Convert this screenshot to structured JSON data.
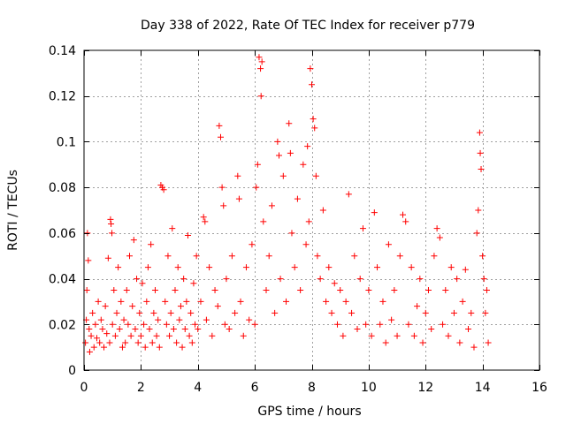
{
  "chart_data": {
    "type": "scatter",
    "title": "Day 338 of 2022, Rate Of TEC Index for receiver p779",
    "xlabel": "GPS time / hours",
    "ylabel": "ROTI / TECUs",
    "xlim": [
      0,
      16
    ],
    "ylim": [
      0,
      0.14
    ],
    "xticks": [
      0,
      2,
      4,
      6,
      8,
      10,
      12,
      14,
      16
    ],
    "yticks": [
      0,
      0.02,
      0.04,
      0.06,
      0.08,
      0.1,
      0.12,
      0.14
    ],
    "xtick_labels": [
      "0",
      "2",
      "4",
      "6",
      "8",
      "10",
      "12",
      "14",
      "16"
    ],
    "ytick_labels": [
      "0",
      "0.02",
      "0.04",
      "0.06",
      "0.08",
      "0.1",
      "0.12",
      "0.14"
    ],
    "grid": true,
    "marker": "plus",
    "color": "#ff0000",
    "series": [
      {
        "name": "ROTI",
        "points": [
          [
            0.05,
            0.012
          ],
          [
            0.08,
            0.022
          ],
          [
            0.1,
            0.035
          ],
          [
            0.12,
            0.06
          ],
          [
            0.15,
            0.048
          ],
          [
            0.18,
            0.018
          ],
          [
            0.2,
            0.008
          ],
          [
            0.25,
            0.015
          ],
          [
            0.3,
            0.025
          ],
          [
            0.35,
            0.01
          ],
          [
            0.4,
            0.02
          ],
          [
            0.45,
            0.014
          ],
          [
            0.5,
            0.03
          ],
          [
            0.55,
            0.012
          ],
          [
            0.6,
            0.022
          ],
          [
            0.65,
            0.018
          ],
          [
            0.7,
            0.01
          ],
          [
            0.75,
            0.028
          ],
          [
            0.8,
            0.016
          ],
          [
            0.85,
            0.049
          ],
          [
            0.9,
            0.012
          ],
          [
            0.93,
            0.066
          ],
          [
            0.95,
            0.064
          ],
          [
            0.98,
            0.06
          ],
          [
            1.0,
            0.02
          ],
          [
            1.05,
            0.035
          ],
          [
            1.1,
            0.015
          ],
          [
            1.15,
            0.025
          ],
          [
            1.2,
            0.045
          ],
          [
            1.25,
            0.018
          ],
          [
            1.3,
            0.03
          ],
          [
            1.35,
            0.01
          ],
          [
            1.4,
            0.022
          ],
          [
            1.45,
            0.012
          ],
          [
            1.5,
            0.035
          ],
          [
            1.55,
            0.02
          ],
          [
            1.6,
            0.05
          ],
          [
            1.65,
            0.015
          ],
          [
            1.7,
            0.028
          ],
          [
            1.75,
            0.057
          ],
          [
            1.8,
            0.018
          ],
          [
            1.85,
            0.04
          ],
          [
            1.9,
            0.012
          ],
          [
            1.95,
            0.025
          ],
          [
            2.0,
            0.015
          ],
          [
            2.05,
            0.038
          ],
          [
            2.1,
            0.02
          ],
          [
            2.15,
            0.01
          ],
          [
            2.2,
            0.03
          ],
          [
            2.25,
            0.045
          ],
          [
            2.3,
            0.018
          ],
          [
            2.35,
            0.055
          ],
          [
            2.4,
            0.012
          ],
          [
            2.45,
            0.025
          ],
          [
            2.5,
            0.035
          ],
          [
            2.55,
            0.015
          ],
          [
            2.6,
            0.022
          ],
          [
            2.65,
            0.01
          ],
          [
            2.7,
            0.081
          ],
          [
            2.75,
            0.08
          ],
          [
            2.8,
            0.079
          ],
          [
            2.85,
            0.03
          ],
          [
            2.9,
            0.02
          ],
          [
            2.95,
            0.05
          ],
          [
            3.0,
            0.015
          ],
          [
            3.05,
            0.025
          ],
          [
            3.1,
            0.062
          ],
          [
            3.15,
            0.018
          ],
          [
            3.2,
            0.035
          ],
          [
            3.25,
            0.012
          ],
          [
            3.3,
            0.045
          ],
          [
            3.35,
            0.022
          ],
          [
            3.4,
            0.028
          ],
          [
            3.45,
            0.01
          ],
          [
            3.5,
            0.04
          ],
          [
            3.55,
            0.018
          ],
          [
            3.6,
            0.03
          ],
          [
            3.65,
            0.059
          ],
          [
            3.7,
            0.015
          ],
          [
            3.75,
            0.025
          ],
          [
            3.8,
            0.012
          ],
          [
            3.85,
            0.038
          ],
          [
            3.9,
            0.02
          ],
          [
            3.95,
            0.05
          ],
          [
            4.0,
            0.018
          ],
          [
            4.1,
            0.03
          ],
          [
            4.2,
            0.067
          ],
          [
            4.25,
            0.065
          ],
          [
            4.3,
            0.022
          ],
          [
            4.4,
            0.045
          ],
          [
            4.5,
            0.015
          ],
          [
            4.6,
            0.035
          ],
          [
            4.7,
            0.028
          ],
          [
            4.75,
            0.107
          ],
          [
            4.8,
            0.102
          ],
          [
            4.85,
            0.08
          ],
          [
            4.9,
            0.072
          ],
          [
            4.95,
            0.02
          ],
          [
            5.0,
            0.04
          ],
          [
            5.1,
            0.018
          ],
          [
            5.2,
            0.05
          ],
          [
            5.3,
            0.025
          ],
          [
            5.4,
            0.085
          ],
          [
            5.45,
            0.075
          ],
          [
            5.5,
            0.03
          ],
          [
            5.6,
            0.015
          ],
          [
            5.7,
            0.045
          ],
          [
            5.8,
            0.022
          ],
          [
            5.9,
            0.055
          ],
          [
            6.0,
            0.02
          ],
          [
            6.05,
            0.08
          ],
          [
            6.1,
            0.09
          ],
          [
            6.15,
            0.137
          ],
          [
            6.2,
            0.132
          ],
          [
            6.22,
            0.12
          ],
          [
            6.25,
            0.135
          ],
          [
            6.3,
            0.065
          ],
          [
            6.4,
            0.035
          ],
          [
            6.5,
            0.05
          ],
          [
            6.6,
            0.072
          ],
          [
            6.7,
            0.025
          ],
          [
            6.8,
            0.1
          ],
          [
            6.85,
            0.094
          ],
          [
            6.9,
            0.04
          ],
          [
            7.0,
            0.085
          ],
          [
            7.1,
            0.03
          ],
          [
            7.2,
            0.108
          ],
          [
            7.25,
            0.095
          ],
          [
            7.3,
            0.06
          ],
          [
            7.4,
            0.045
          ],
          [
            7.5,
            0.075
          ],
          [
            7.6,
            0.035
          ],
          [
            7.7,
            0.09
          ],
          [
            7.8,
            0.055
          ],
          [
            7.85,
            0.098
          ],
          [
            7.9,
            0.065
          ],
          [
            7.95,
            0.132
          ],
          [
            8.0,
            0.125
          ],
          [
            8.05,
            0.11
          ],
          [
            8.1,
            0.106
          ],
          [
            8.15,
            0.085
          ],
          [
            8.2,
            0.05
          ],
          [
            8.3,
            0.04
          ],
          [
            8.4,
            0.07
          ],
          [
            8.5,
            0.03
          ],
          [
            8.6,
            0.045
          ],
          [
            8.7,
            0.025
          ],
          [
            8.8,
            0.038
          ],
          [
            8.9,
            0.02
          ],
          [
            9.0,
            0.035
          ],
          [
            9.1,
            0.015
          ],
          [
            9.2,
            0.03
          ],
          [
            9.3,
            0.077
          ],
          [
            9.4,
            0.025
          ],
          [
            9.5,
            0.05
          ],
          [
            9.6,
            0.018
          ],
          [
            9.7,
            0.04
          ],
          [
            9.8,
            0.062
          ],
          [
            9.9,
            0.02
          ],
          [
            10.0,
            0.035
          ],
          [
            10.1,
            0.015
          ],
          [
            10.2,
            0.069
          ],
          [
            10.3,
            0.045
          ],
          [
            10.4,
            0.02
          ],
          [
            10.5,
            0.03
          ],
          [
            10.6,
            0.012
          ],
          [
            10.7,
            0.055
          ],
          [
            10.8,
            0.022
          ],
          [
            10.9,
            0.035
          ],
          [
            11.0,
            0.015
          ],
          [
            11.1,
            0.05
          ],
          [
            11.2,
            0.068
          ],
          [
            11.3,
            0.065
          ],
          [
            11.4,
            0.02
          ],
          [
            11.5,
            0.045
          ],
          [
            11.6,
            0.015
          ],
          [
            11.7,
            0.028
          ],
          [
            11.8,
            0.04
          ],
          [
            11.9,
            0.012
          ],
          [
            12.0,
            0.025
          ],
          [
            12.1,
            0.035
          ],
          [
            12.2,
            0.018
          ],
          [
            12.3,
            0.05
          ],
          [
            12.4,
            0.062
          ],
          [
            12.5,
            0.058
          ],
          [
            12.6,
            0.02
          ],
          [
            12.7,
            0.035
          ],
          [
            12.8,
            0.015
          ],
          [
            12.9,
            0.045
          ],
          [
            13.0,
            0.025
          ],
          [
            13.1,
            0.04
          ],
          [
            13.2,
            0.012
          ],
          [
            13.3,
            0.03
          ],
          [
            13.4,
            0.044
          ],
          [
            13.5,
            0.018
          ],
          [
            13.6,
            0.025
          ],
          [
            13.7,
            0.01
          ],
          [
            13.8,
            0.06
          ],
          [
            13.85,
            0.07
          ],
          [
            13.9,
            0.104
          ],
          [
            13.92,
            0.095
          ],
          [
            13.95,
            0.088
          ],
          [
            14.0,
            0.05
          ],
          [
            14.05,
            0.04
          ],
          [
            14.1,
            0.025
          ],
          [
            14.15,
            0.035
          ],
          [
            14.2,
            0.012
          ]
        ]
      }
    ]
  }
}
